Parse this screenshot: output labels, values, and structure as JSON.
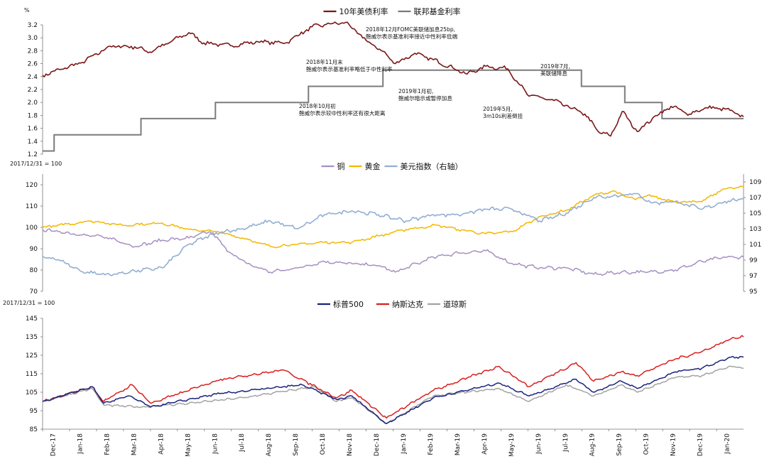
{
  "colors": {
    "treasury": "#7a1616",
    "fedfunds": "#7b7b7b",
    "copper": "#a591c0",
    "gold": "#f2b800",
    "dxy": "#93aed2",
    "sp500": "#1a237e",
    "nasdaq": "#d91e1e",
    "dow": "#a3a3a3"
  },
  "x_ticks": [
    "Dec-17",
    "Jan-18",
    "Feb-18",
    "Mar-18",
    "Apr-18",
    "May-18",
    "Jun-18",
    "Jul-18",
    "Aug-18",
    "Sep-18",
    "Oct-18",
    "Nov-18",
    "Dec-18",
    "Jan-19",
    "Feb-19",
    "Mar-19",
    "Apr-19",
    "May-19",
    "Jun-19",
    "Jul-19",
    "Aug-19",
    "Sep-19",
    "Oct-19",
    "Nov-19",
    "Dec-19",
    "Jan-20"
  ],
  "chart_data": [
    {
      "id": "rates",
      "type": "line",
      "title": "",
      "unit_label": "%",
      "x_range": [
        "2017-12-01",
        "2020-01-31"
      ],
      "ylim": [
        1.2,
        3.2
      ],
      "y_ticks": [
        "1.2",
        "1.4",
        "1.6",
        "1.8",
        "2.0",
        "2.2",
        "2.4",
        "2.6",
        "2.8",
        "3.0",
        "3.2"
      ],
      "legend": [
        "10年美债利率",
        "联邦基金利率"
      ],
      "series": [
        {
          "name": "10年美债利率",
          "x": [
            "2017-12-01",
            "2018-01-15",
            "2018-02-15",
            "2018-03-15",
            "2018-04-01",
            "2018-05-15",
            "2018-06-01",
            "2018-07-01",
            "2018-08-01",
            "2018-09-01",
            "2018-10-01",
            "2018-10-15",
            "2018-11-08",
            "2018-12-01",
            "2018-12-20",
            "2019-01-03",
            "2019-01-25",
            "2019-02-15",
            "2019-03-25",
            "2019-04-15",
            "2019-05-10",
            "2019-06-01",
            "2019-07-01",
            "2019-08-05",
            "2019-08-20",
            "2019-09-03",
            "2019-09-16",
            "2019-10-03",
            "2019-10-20",
            "2019-11-10",
            "2019-12-01",
            "2019-12-20",
            "2020-01-10",
            "2020-01-31"
          ],
          "y": [
            2.42,
            2.62,
            2.87,
            2.86,
            2.78,
            3.08,
            2.92,
            2.88,
            2.94,
            2.92,
            3.17,
            3.2,
            3.24,
            2.96,
            2.79,
            2.6,
            2.76,
            2.66,
            2.44,
            2.56,
            2.52,
            2.12,
            2.03,
            1.82,
            1.55,
            1.48,
            1.86,
            1.55,
            1.75,
            1.94,
            1.82,
            1.92,
            1.9,
            1.78
          ]
        },
        {
          "name": "联邦基金利率",
          "type": "step",
          "x": [
            "2017-12-01",
            "2017-12-14",
            "2018-03-22",
            "2018-06-14",
            "2018-09-27",
            "2018-12-20",
            "2019-08-01",
            "2019-09-19",
            "2019-10-31",
            "2020-01-31"
          ],
          "y": [
            1.25,
            1.5,
            1.75,
            2.0,
            2.25,
            2.5,
            2.25,
            2.0,
            1.75,
            1.75
          ]
        }
      ],
      "annotations": [
        {
          "lines": [
            "2018年12月FOMC美联储加息25bp,",
            "鲍威尔表示基准利率接近中性利率低端"
          ]
        },
        {
          "lines": [
            "2018年11月末",
            "鲍威尔表示基准利率略低于中性利率"
          ]
        },
        {
          "lines": [
            "2018年10月初",
            "鲍威尔表示较中性利率还有很大距离"
          ]
        },
        {
          "lines": [
            "2019年1月初,",
            "鲍威尔暗示或暂停加息"
          ]
        },
        {
          "lines": [
            "2019年5月,",
            "3m10s利差倒挂"
          ]
        },
        {
          "lines": [
            "2019年7月,",
            "美联储降息"
          ]
        }
      ]
    },
    {
      "id": "commodities",
      "type": "line",
      "unit_label": "2017/12/31 = 100",
      "x_range": [
        "2017-12-01",
        "2020-01-31"
      ],
      "ylim": [
        70,
        125
      ],
      "y_ticks": [
        "70",
        "80",
        "90",
        "100",
        "110",
        "120"
      ],
      "y2lim": [
        95,
        110
      ],
      "y2_ticks": [
        "95",
        "97",
        "99",
        "101",
        "103",
        "105",
        "107",
        "109"
      ],
      "legend": [
        "铜",
        "黄金",
        "美元指数（右轴）"
      ],
      "series": [
        {
          "name": "铜",
          "x": [
            "2017-12-01",
            "2018-01-05",
            "2018-02-15",
            "2018-03-15",
            "2018-04-15",
            "2018-05-15",
            "2018-06-08",
            "2018-07-01",
            "2018-07-20",
            "2018-08-15",
            "2018-09-15",
            "2018-10-15",
            "2018-11-15",
            "2018-12-15",
            "2019-01-03",
            "2019-02-15",
            "2019-03-15",
            "2019-04-15",
            "2019-05-15",
            "2019-06-15",
            "2019-07-15",
            "2019-08-15",
            "2019-09-15",
            "2019-10-15",
            "2019-11-15",
            "2019-12-15",
            "2020-01-10",
            "2020-01-31"
          ],
          "y": [
            99,
            97,
            95,
            91,
            94,
            95,
            98,
            88,
            83,
            79,
            81,
            84,
            83,
            82,
            79,
            86,
            88,
            89,
            83,
            81,
            81,
            78,
            79,
            79,
            80,
            84,
            86,
            86
          ]
        },
        {
          "name": "黄金",
          "x": [
            "2017-12-01",
            "2018-01-25",
            "2018-03-01",
            "2018-04-15",
            "2018-05-15",
            "2018-06-15",
            "2018-07-15",
            "2018-08-15",
            "2018-09-15",
            "2018-10-15",
            "2018-11-15",
            "2018-12-15",
            "2019-01-15",
            "2019-02-20",
            "2019-03-15",
            "2019-04-15",
            "2019-05-15",
            "2019-06-15",
            "2019-07-15",
            "2019-08-15",
            "2019-09-05",
            "2019-10-01",
            "2019-10-15",
            "2019-11-15",
            "2019-12-15",
            "2020-01-08",
            "2020-01-31"
          ],
          "y": [
            100,
            103,
            101,
            102,
            99,
            98,
            95,
            91,
            92,
            93,
            93,
            96,
            99,
            101,
            99,
            97,
            98,
            105,
            108,
            115,
            117,
            113,
            115,
            112,
            112,
            118,
            119
          ]
        },
        {
          "name": "美元指数（右轴）",
          "x": [
            "2017-12-01",
            "2017-12-20",
            "2018-01-15",
            "2018-02-15",
            "2018-03-15",
            "2018-04-15",
            "2018-05-15",
            "2018-06-15",
            "2018-07-15",
            "2018-08-15",
            "2018-09-15",
            "2018-10-15",
            "2018-11-15",
            "2018-12-15",
            "2019-01-15",
            "2019-02-15",
            "2019-03-15",
            "2019-04-15",
            "2019-05-15",
            "2019-06-15",
            "2019-07-15",
            "2019-08-15",
            "2019-09-15",
            "2019-10-01",
            "2019-10-20",
            "2019-11-15",
            "2019-12-15",
            "2020-01-10",
            "2020-01-31"
          ],
          "y": [
            99.5,
            99.0,
            97.5,
            97.1,
            97.6,
            98.0,
            101.0,
            102.5,
            103.0,
            104.0,
            103.0,
            104.8,
            105.3,
            104.8,
            104.0,
            104.8,
            104.8,
            105.5,
            105.5,
            104.0,
            105.0,
            107.0,
            107.3,
            107.5,
            106.3,
            106.5,
            105.5,
            106.5,
            106.8
          ]
        }
      ]
    },
    {
      "id": "equities",
      "type": "line",
      "unit_label": "2017/12/31 = 100",
      "x_range": [
        "2017-12-01",
        "2020-01-31"
      ],
      "ylim": [
        85,
        145
      ],
      "y_ticks": [
        "85",
        "95",
        "105",
        "115",
        "125",
        "135",
        "145"
      ],
      "legend": [
        "标普500",
        "纳斯达克",
        "道琼斯"
      ],
      "series": [
        {
          "name": "标普500",
          "x": [
            "2017-12-01",
            "2018-01-26",
            "2018-02-08",
            "2018-03-09",
            "2018-04-02",
            "2018-06-15",
            "2018-09-20",
            "2018-10-29",
            "2018-11-15",
            "2018-12-24",
            "2019-02-15",
            "2019-04-30",
            "2019-06-03",
            "2019-07-26",
            "2019-08-15",
            "2019-09-15",
            "2019-10-03",
            "2019-11-15",
            "2019-12-15",
            "2020-01-17",
            "2020-01-31"
          ],
          "y": [
            100,
            108,
            99,
            103,
            97,
            104,
            109,
            101,
            103,
            88,
            102,
            110,
            103,
            112,
            105,
            111,
            107,
            116,
            118,
            124,
            124
          ]
        },
        {
          "name": "纳斯达克",
          "x": [
            "2017-12-01",
            "2018-01-26",
            "2018-02-08",
            "2018-03-12",
            "2018-04-02",
            "2018-06-20",
            "2018-08-30",
            "2018-10-29",
            "2018-11-15",
            "2018-12-24",
            "2019-02-15",
            "2019-04-30",
            "2019-06-03",
            "2019-07-26",
            "2019-08-15",
            "2019-09-15",
            "2019-10-03",
            "2019-11-15",
            "2019-12-15",
            "2020-01-17",
            "2020-01-31"
          ],
          "y": [
            100,
            108,
            100,
            109,
            99,
            112,
            117,
            102,
            106,
            91,
            106,
            119,
            108,
            121,
            111,
            116,
            114,
            123,
            127,
            134,
            135
          ]
        },
        {
          "name": "道琼斯",
          "x": [
            "2017-12-01",
            "2018-01-26",
            "2018-02-08",
            "2018-03-23",
            "2018-05-15",
            "2018-07-15",
            "2018-10-03",
            "2018-10-29",
            "2018-11-15",
            "2018-12-24",
            "2019-02-15",
            "2019-04-30",
            "2019-06-03",
            "2019-07-15",
            "2019-08-15",
            "2019-09-15",
            "2019-10-03",
            "2019-11-15",
            "2019-12-15",
            "2020-01-17",
            "2020-01-31"
          ],
          "y": [
            100,
            107,
            98,
            97,
            99,
            102,
            108,
            100,
            102,
            88,
            103,
            107,
            100,
            109,
            103,
            109,
            105,
            113,
            114,
            119,
            118
          ]
        }
      ]
    }
  ]
}
